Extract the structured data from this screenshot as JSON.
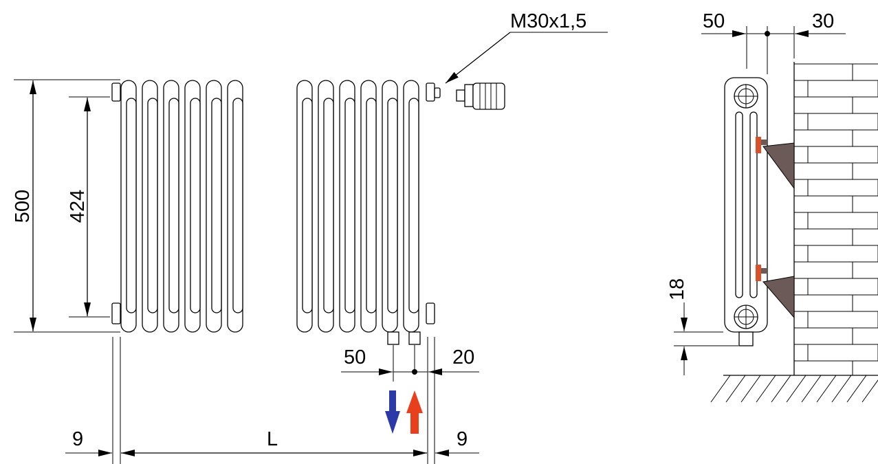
{
  "front_view": {
    "height_label": "500",
    "axis_distance_label": "424",
    "thread_label": "M30x1,5",
    "pipe_spacing_label": "50",
    "pipe_offset_label": "20",
    "length_label": "L",
    "left_margin_label": "9",
    "right_margin_label": "9"
  },
  "side_view": {
    "depth_label": "50",
    "wall_gap_label": "30",
    "floor_gap_label": "18"
  },
  "colors": {
    "supply_arrow": "#e8401c",
    "return_arrow": "#2b3aa6",
    "bracket": "#6b5a57",
    "wall_plug": "#d9502a",
    "line": "#000000"
  },
  "icons": {
    "flow_out": "arrow-down-icon",
    "flow_in": "arrow-up-icon",
    "valve": "thermostatic-head-icon"
  }
}
